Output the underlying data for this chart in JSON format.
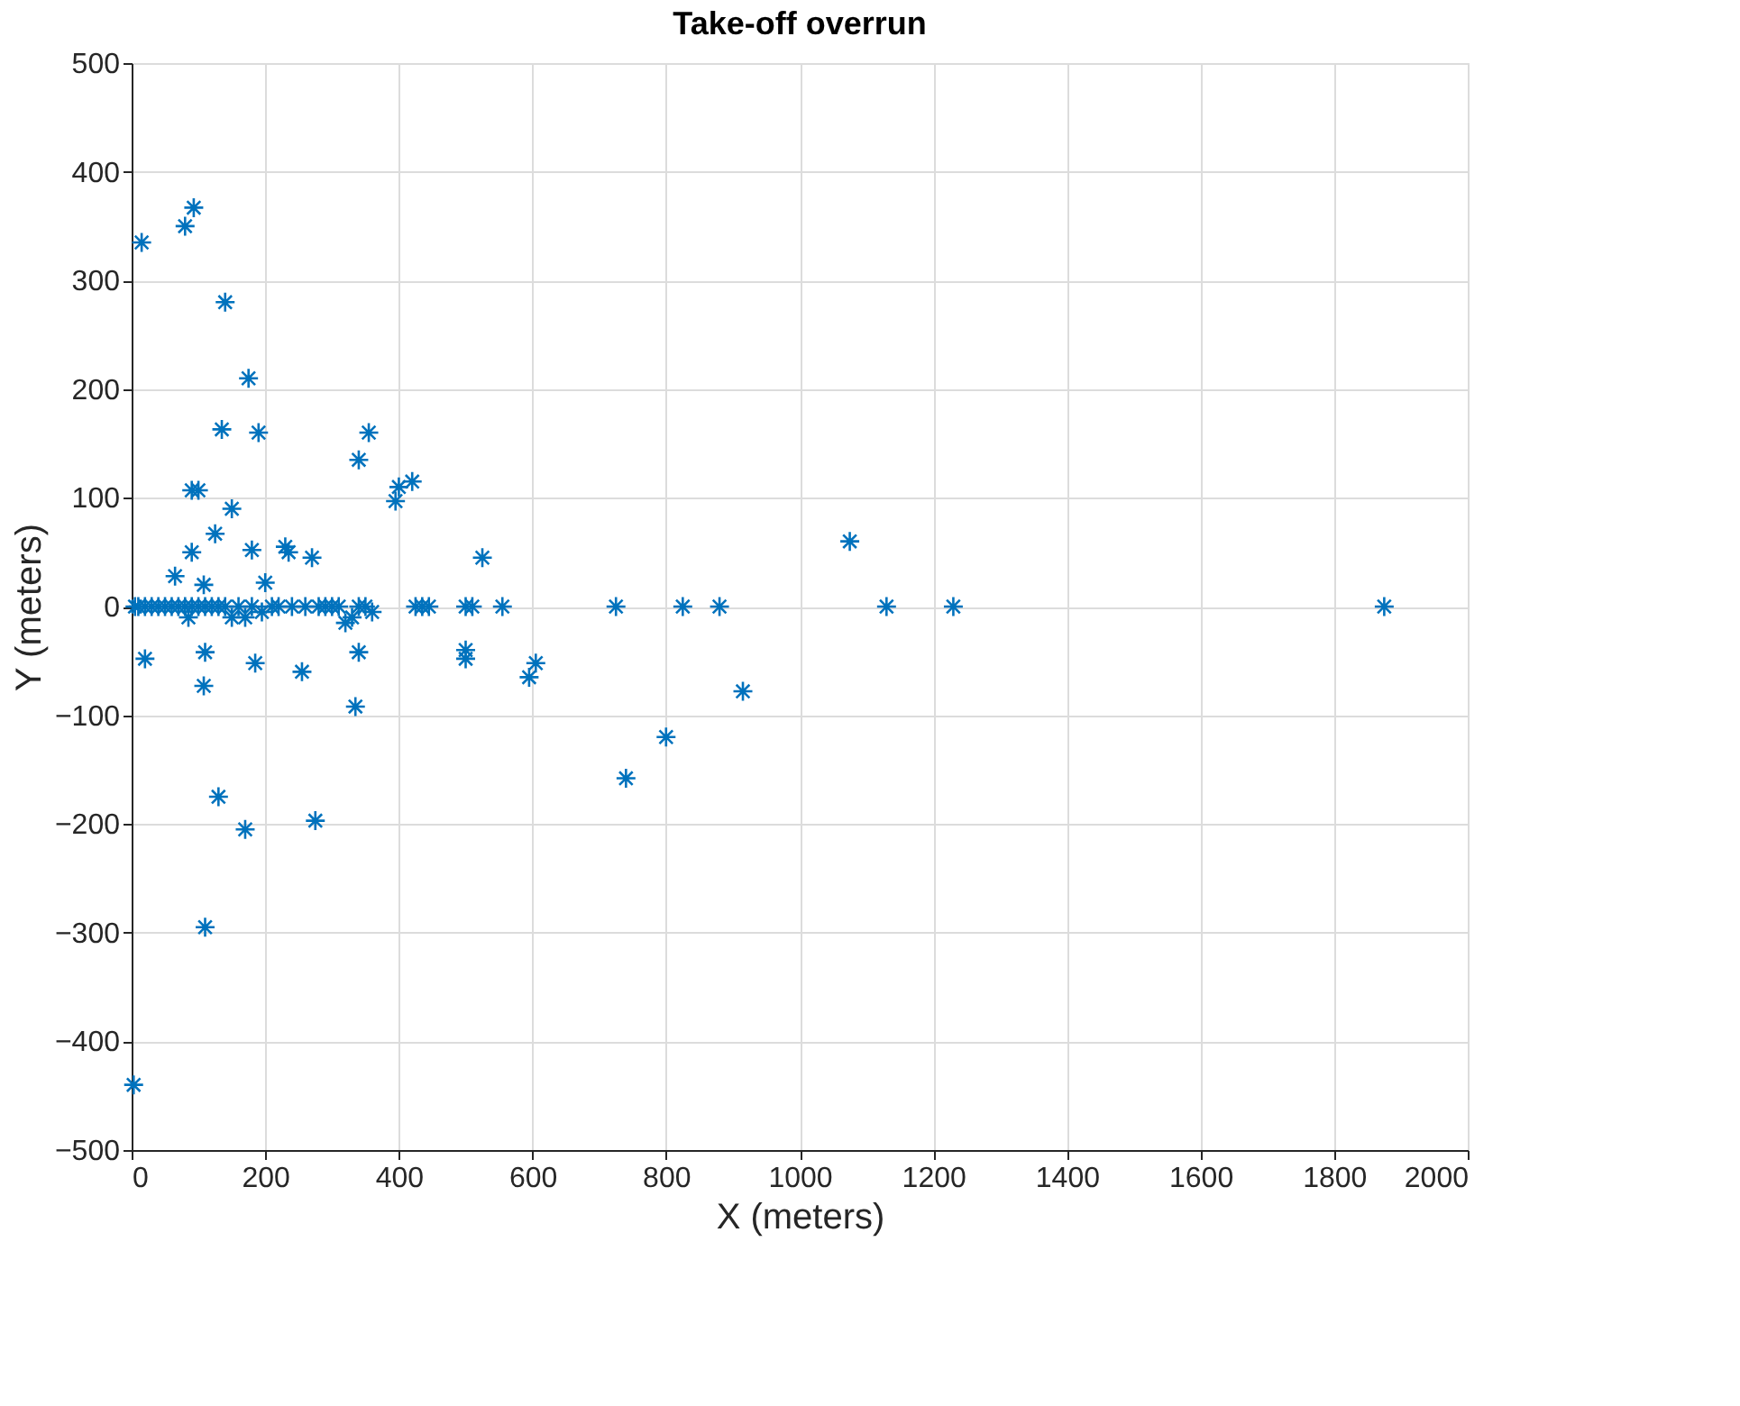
{
  "chart_data": {
    "type": "scatter",
    "title": "Take-off overrun",
    "xlabel": "X (meters)",
    "ylabel": "Y (meters)",
    "xlim": [
      0,
      2000
    ],
    "ylim": [
      -500,
      500
    ],
    "xticks": [
      0,
      200,
      400,
      600,
      800,
      1000,
      1200,
      1400,
      1600,
      1800,
      2000
    ],
    "yticks": [
      -500,
      -400,
      -300,
      -200,
      -100,
      0,
      100,
      200,
      300,
      400,
      500
    ],
    "grid": true,
    "marker": "cross",
    "series": [
      {
        "color": "#0072bd",
        "x": [
          15,
          80,
          93,
          140,
          175,
          135,
          190,
          90,
          100,
          150,
          125,
          90,
          65,
          108,
          200,
          180,
          230,
          235,
          270,
          340,
          355,
          395,
          400,
          420,
          525,
          1075,
          20,
          108,
          110,
          170,
          130,
          110,
          185,
          255,
          275,
          335,
          340,
          500,
          500,
          595,
          605,
          740,
          800,
          915,
          3,
          85,
          195,
          150,
          170,
          320,
          330,
          360,
          5,
          10,
          20,
          30,
          40,
          50,
          60,
          70,
          80,
          90,
          100,
          110,
          120,
          130,
          140,
          160,
          180,
          210,
          220,
          240,
          260,
          280,
          290,
          300,
          310,
          340,
          350,
          425,
          435,
          445,
          500,
          510,
          555,
          725,
          825,
          880,
          1130,
          1230,
          1875
        ],
        "values": [
          335,
          350,
          367,
          280,
          210,
          163,
          160,
          107,
          107,
          90,
          67,
          50,
          28,
          20,
          22,
          52,
          55,
          50,
          45,
          135,
          160,
          97,
          110,
          115,
          45,
          60,
          -48,
          -73,
          -42,
          -205,
          -175,
          -295,
          -52,
          -60,
          -197,
          -92,
          -42,
          -40,
          -48,
          -65,
          -52,
          -158,
          -120,
          -78,
          -440,
          -10,
          -5,
          -10,
          -10,
          -15,
          -10,
          -5,
          0,
          0,
          0,
          0,
          0,
          0,
          0,
          0,
          0,
          0,
          0,
          0,
          0,
          0,
          0,
          0,
          0,
          0,
          0,
          0,
          0,
          0,
          0,
          0,
          0,
          0,
          0,
          0,
          0,
          0,
          0,
          0,
          0,
          0,
          0,
          0,
          0,
          0,
          0
        ]
      }
    ]
  }
}
